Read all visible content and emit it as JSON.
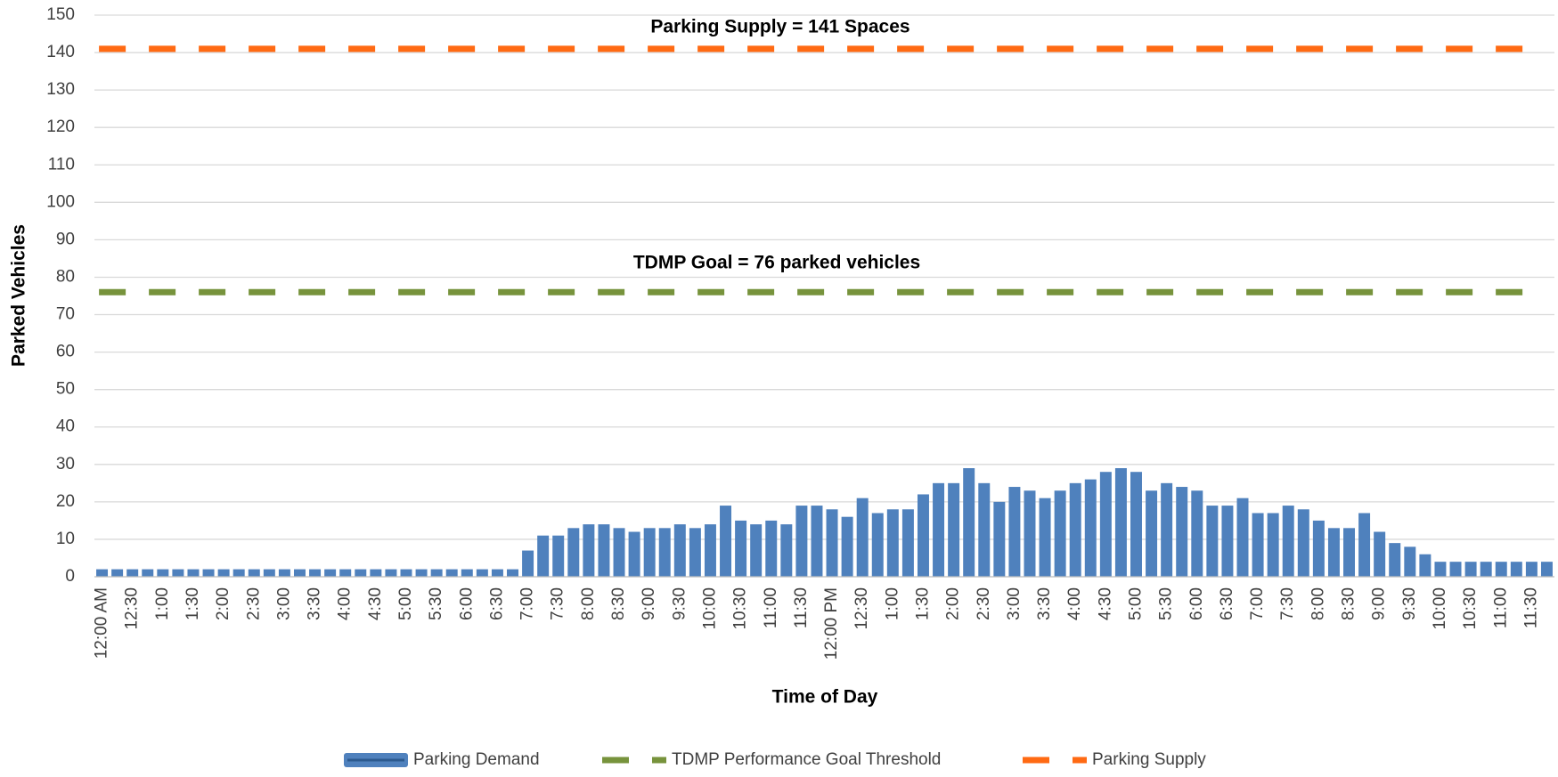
{
  "chart_data": {
    "type": "bar",
    "x_label": "Time of Day",
    "y_label": "Parked Vehicles",
    "annotations": [
      "Parking Supply = 141 Spaces",
      "TDMP Goal = 76 parked vehicles"
    ],
    "categories": [
      "12:00 AM",
      null,
      "12:30",
      null,
      "1:00",
      null,
      "1:30",
      null,
      "2:00",
      null,
      "2:30",
      null,
      "3:00",
      null,
      "3:30",
      null,
      "4:00",
      null,
      "4:30",
      null,
      "5:00",
      null,
      "5:30",
      null,
      "6:00",
      null,
      "6:30",
      null,
      "7:00",
      null,
      "7:30",
      null,
      "8:00",
      null,
      "8:30",
      null,
      "9:00",
      null,
      "9:30",
      null,
      "10:00",
      null,
      "10:30",
      null,
      "11:00",
      null,
      "11:30",
      null,
      "12:00 PM",
      null,
      "12:30",
      null,
      "1:00",
      null,
      "1:30",
      null,
      "2:00",
      null,
      "2:30",
      null,
      "3:00",
      null,
      "3:30",
      null,
      "4:00",
      null,
      "4:30",
      null,
      "5:00",
      null,
      "5:30",
      null,
      "6:00",
      null,
      "6:30",
      null,
      "7:00",
      null,
      "7:30",
      null,
      "8:00",
      null,
      "8:30",
      null,
      "9:00",
      null,
      "9:30",
      null,
      "10:00",
      null,
      "10:30",
      null,
      "11:00",
      null,
      "11:30",
      null
    ],
    "series": [
      {
        "name": "Parking Demand",
        "type": "bar",
        "color": "#4f81bd",
        "values": [
          2,
          2,
          2,
          2,
          2,
          2,
          2,
          2,
          2,
          2,
          2,
          2,
          2,
          2,
          2,
          2,
          2,
          2,
          2,
          2,
          2,
          2,
          2,
          2,
          2,
          2,
          2,
          2,
          7,
          11,
          11,
          13,
          14,
          14,
          13,
          12,
          13,
          13,
          14,
          13,
          14,
          19,
          15,
          14,
          15,
          14,
          19,
          19,
          18,
          16,
          21,
          17,
          18,
          18,
          22,
          25,
          25,
          29,
          25,
          20,
          24,
          23,
          21,
          23,
          25,
          26,
          28,
          29,
          28,
          23,
          25,
          24,
          23,
          19,
          19,
          21,
          17,
          17,
          19,
          18,
          15,
          13,
          13,
          17,
          12,
          9,
          8,
          6,
          4,
          4,
          4,
          4,
          4,
          4,
          4,
          4
        ]
      },
      {
        "name": "TDMP Performance Goal Threshold",
        "type": "line",
        "color": "#77933c",
        "value": 76
      },
      {
        "name": "Parking Supply",
        "type": "line",
        "color": "#ff6a13",
        "value": 141
      }
    ],
    "ylim": [
      0,
      150
    ],
    "yticks": [
      0,
      10,
      20,
      30,
      40,
      50,
      60,
      70,
      80,
      90,
      100,
      110,
      120,
      130,
      140,
      150
    ],
    "grid": true,
    "legend": "bottom"
  }
}
